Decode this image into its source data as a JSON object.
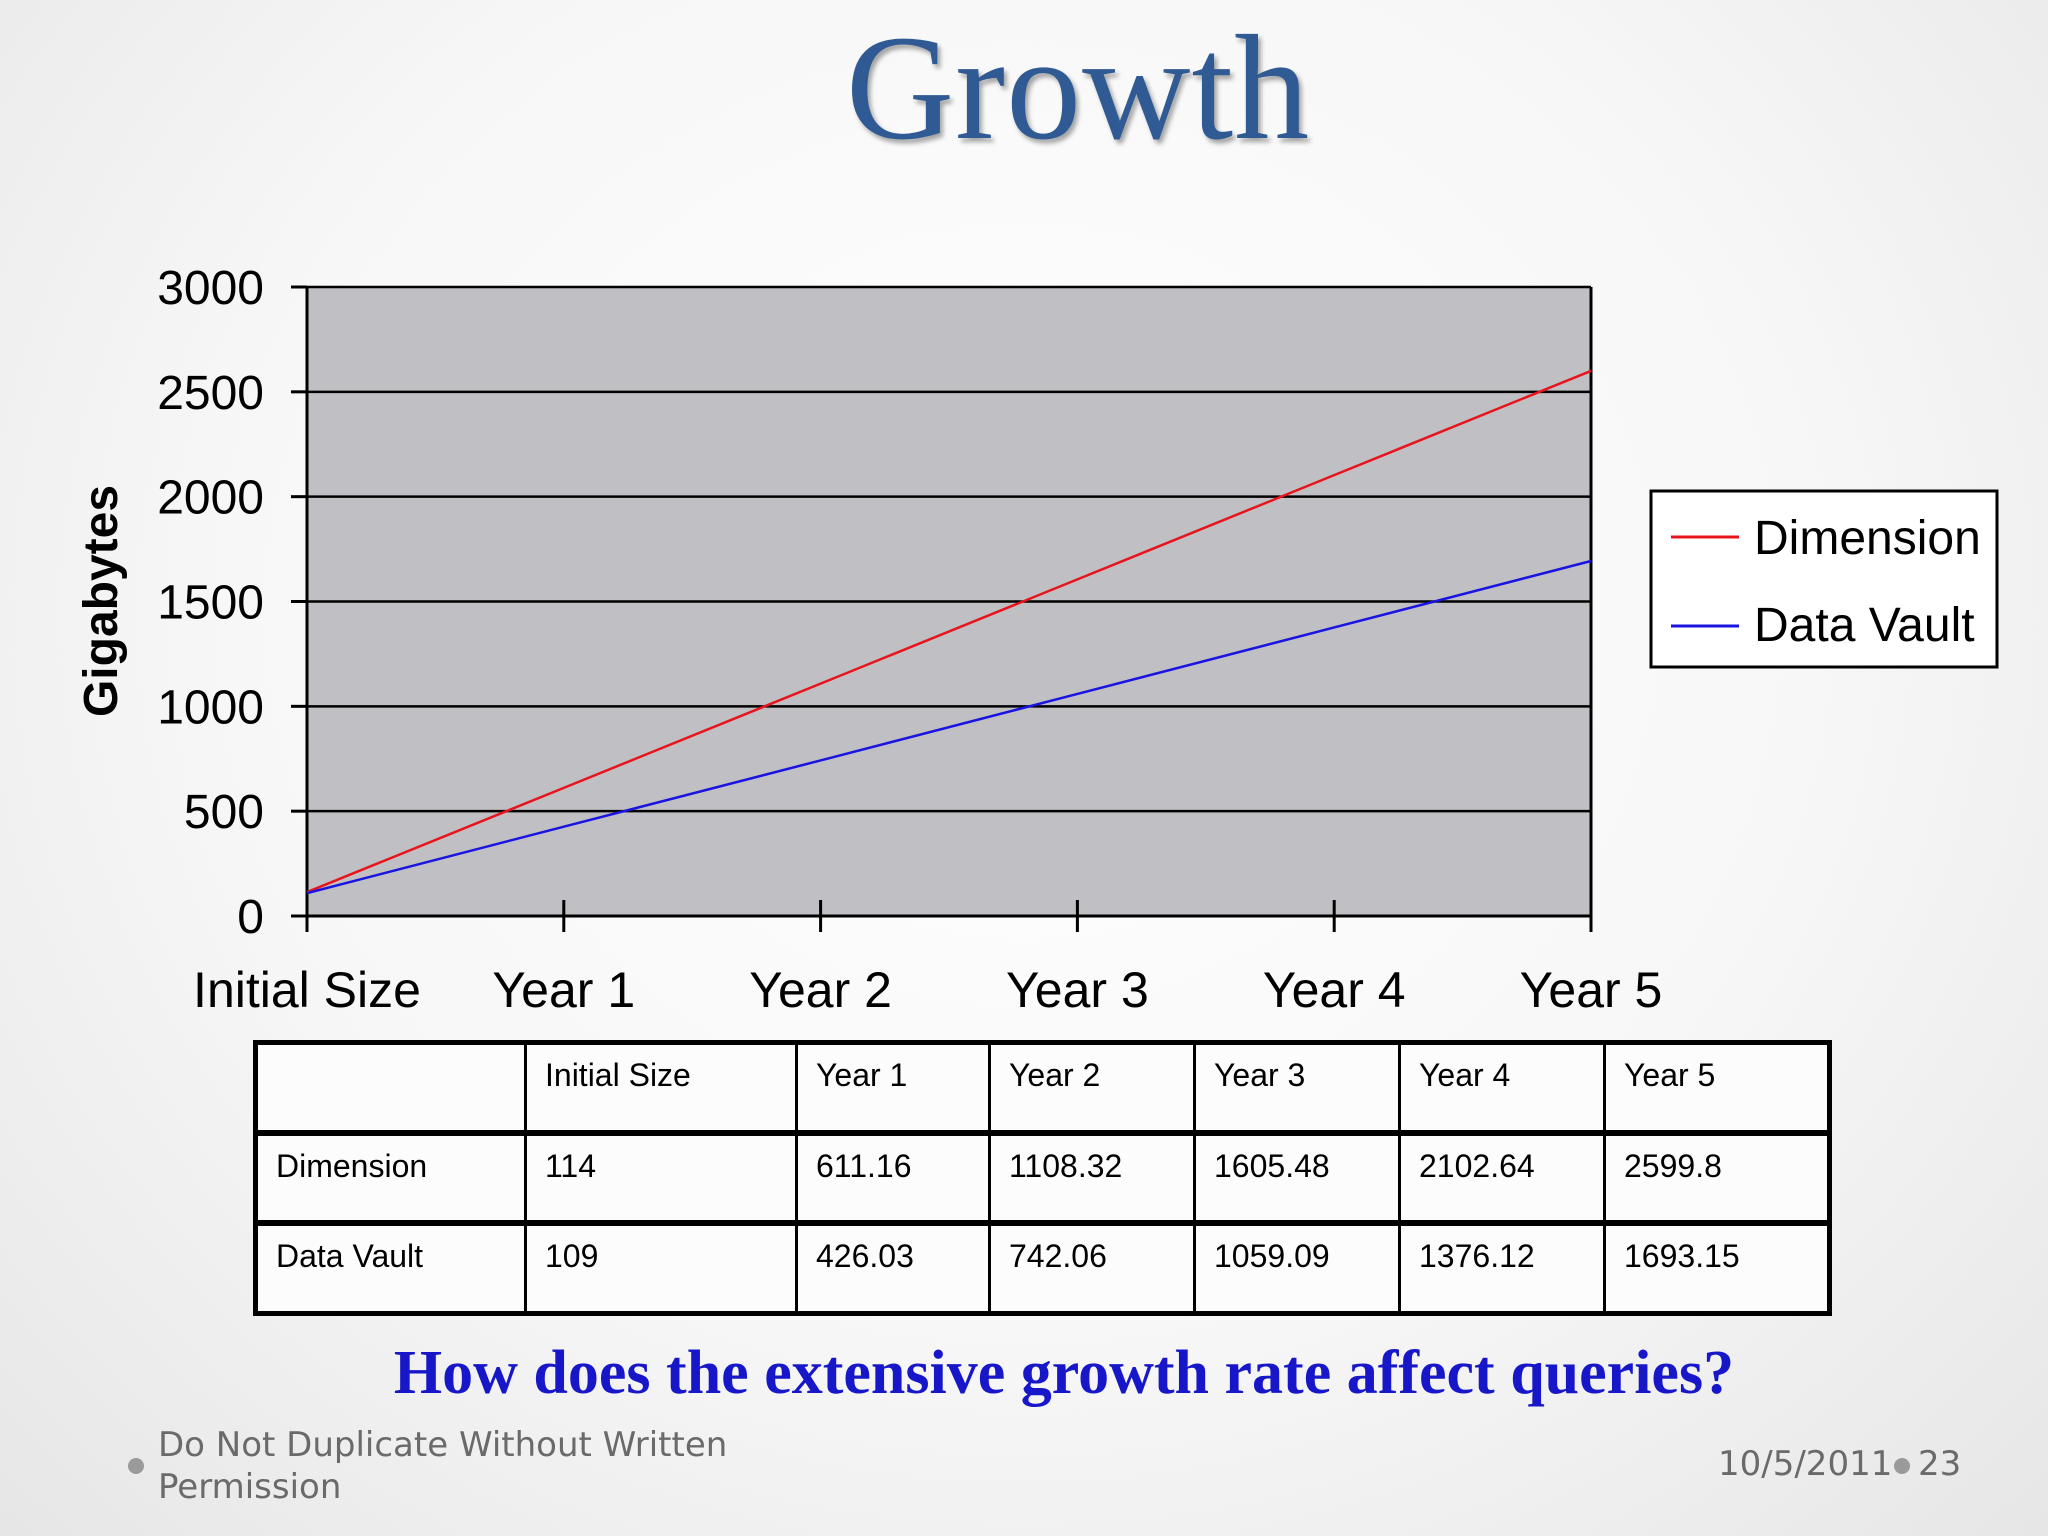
{
  "slide": {
    "title": "Growth",
    "question": "How does the extensive growth rate affect queries?",
    "footer_left": "Do Not Duplicate Without Written Permission",
    "footer_date": "10/5/2011",
    "page_number": "23"
  },
  "colors": {
    "title": "#2f5a93",
    "question": "#1717c9",
    "plot_background": "#c0bfc4",
    "dimension_line": "#e8141c",
    "data_vault_line": "#1a14e0"
  },
  "chart_data": {
    "type": "line",
    "title": "",
    "xlabel": "",
    "ylabel": "Gigabytes",
    "categories": [
      "Initial Size",
      "Year 1",
      "Year 2",
      "Year 3",
      "Year 4",
      "Year 5"
    ],
    "series": [
      {
        "name": "Dimension",
        "color": "#e8141c",
        "values": [
          114,
          611.16,
          1108.32,
          1605.48,
          2102.64,
          2599.8
        ]
      },
      {
        "name": "Data Vault",
        "color": "#1a14e0",
        "values": [
          109,
          426.03,
          742.06,
          1059.09,
          1376.12,
          1693.15
        ]
      }
    ],
    "ylim": [
      0,
      3000
    ],
    "yticks": [
      0,
      500,
      1000,
      1500,
      2000,
      2500,
      3000
    ],
    "grid": true,
    "legend": "right"
  },
  "table": {
    "headers": [
      "",
      "Initial Size",
      "Year 1",
      "Year 2",
      "Year 3",
      "Year 4",
      "Year 5"
    ],
    "rows": [
      [
        "Dimension",
        "114",
        "611.16",
        "1108.32",
        "1605.48",
        "2102.64",
        "2599.8"
      ],
      [
        "Data Vault",
        "109",
        "426.03",
        "742.06",
        "1059.09",
        "1376.12",
        "1693.15"
      ]
    ]
  }
}
